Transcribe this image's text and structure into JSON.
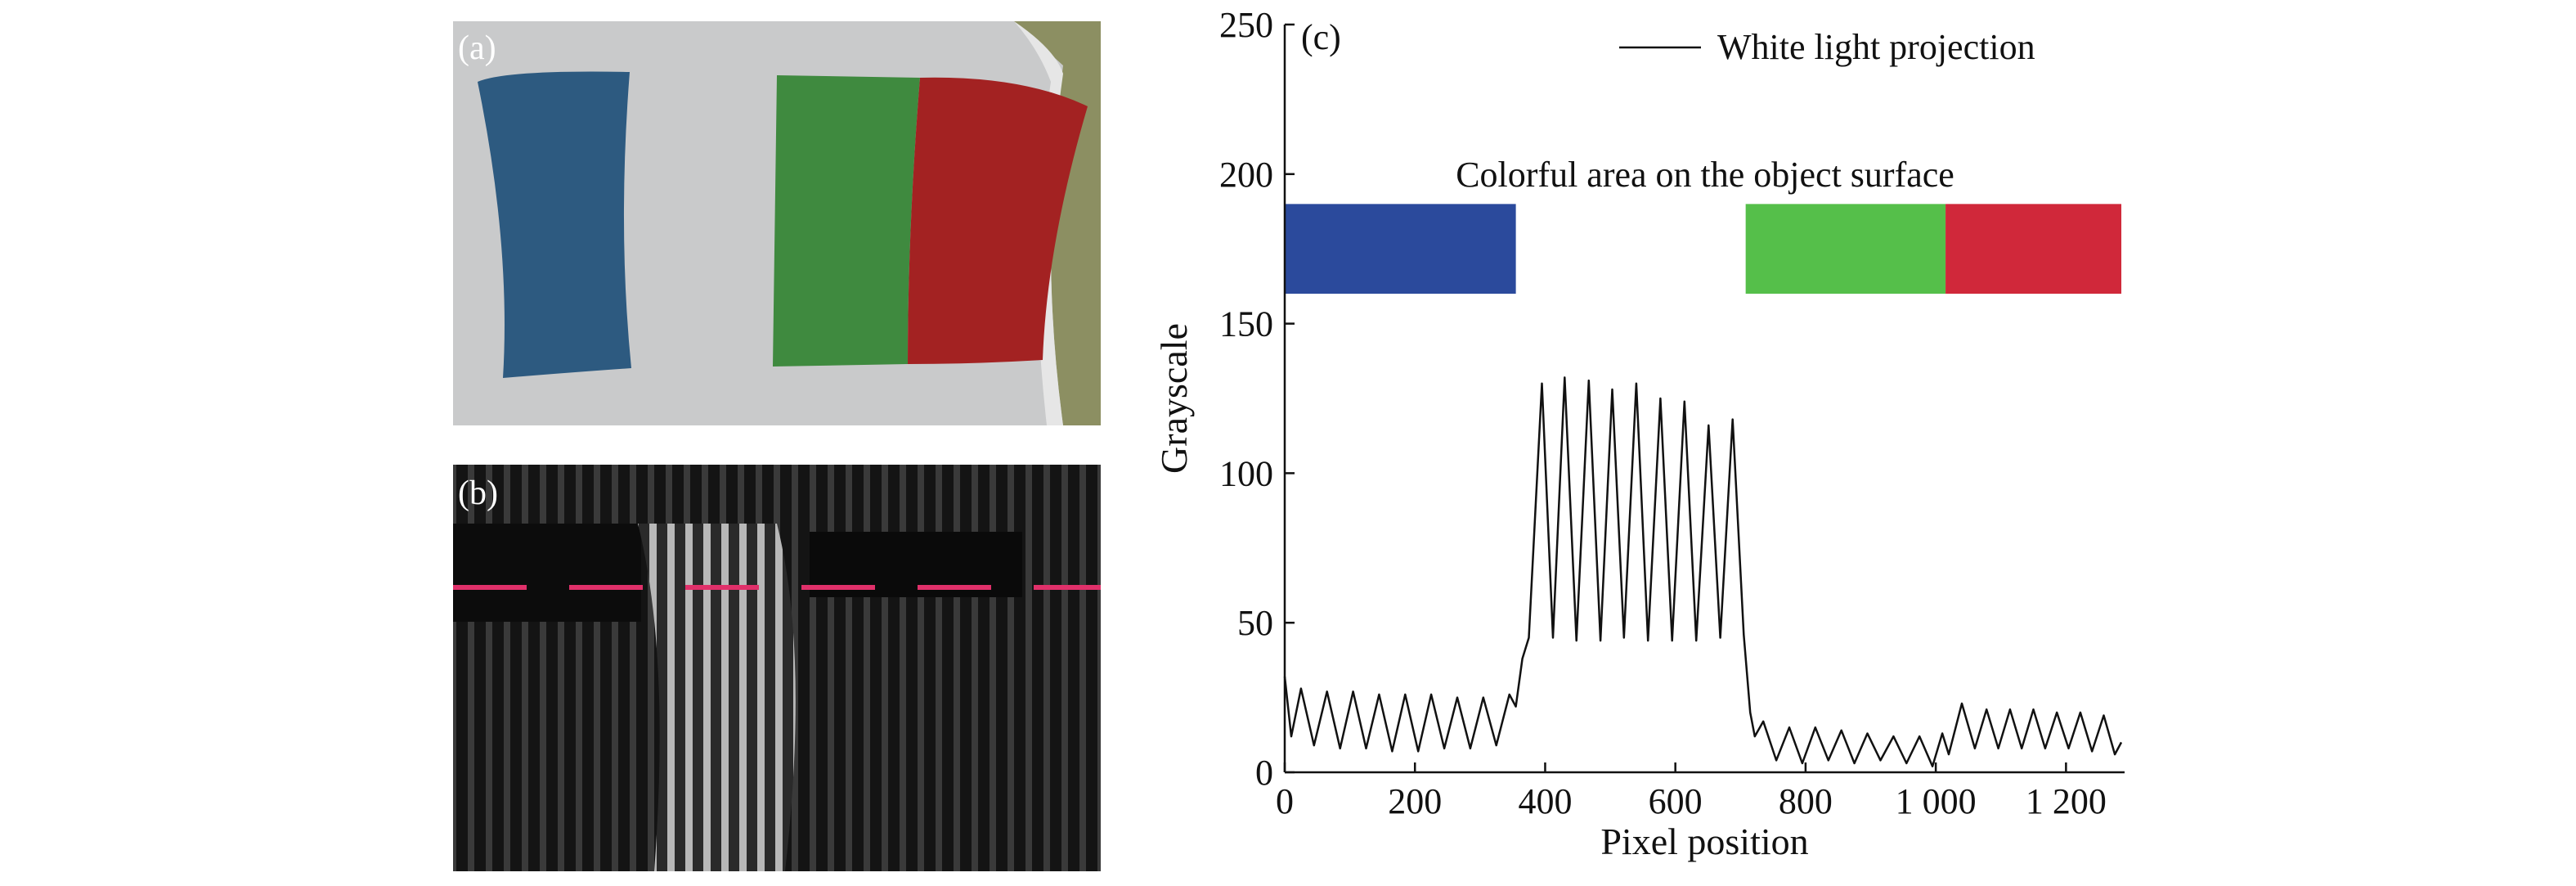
{
  "panels": {
    "a": "(a)",
    "b": "(b)"
  },
  "chart_data": {
    "type": "line",
    "panel_label": "(c)",
    "xlabel": "Pixel position",
    "ylabel": "Grayscale",
    "annotation": "Colorful area on the object surface",
    "legend": "upper right",
    "xlim": [
      0,
      1290
    ],
    "ylim": [
      0,
      250
    ],
    "xticks": [
      0,
      200,
      400,
      600,
      800,
      {
        "value": 1000,
        "label": "1 000"
      },
      {
        "value": 1200,
        "label": "1 200"
      }
    ],
    "yticks": [
      0,
      50,
      100,
      150,
      200,
      250
    ],
    "color_bars": [
      {
        "color": "#2b4a9c",
        "x": [
          0,
          355
        ],
        "y": [
          160,
          190
        ]
      },
      {
        "color": "#55bf4a",
        "x": [
          708,
          1015
        ],
        "y": [
          160,
          190
        ]
      },
      {
        "color": "#d0283a",
        "x": [
          1015,
          1285
        ],
        "y": [
          160,
          190
        ]
      }
    ],
    "x": [
      0,
      10,
      25,
      45,
      65,
      85,
      105,
      125,
      145,
      165,
      185,
      205,
      225,
      245,
      265,
      285,
      305,
      325,
      345,
      355,
      365,
      375,
      395,
      412,
      430,
      448,
      467,
      485,
      503,
      521,
      540,
      558,
      577,
      595,
      614,
      632,
      651,
      669,
      688,
      705,
      715,
      722,
      735,
      755,
      775,
      795,
      815,
      835,
      855,
      875,
      895,
      915,
      935,
      955,
      975,
      995,
      1010,
      1020,
      1040,
      1060,
      1078,
      1096,
      1114,
      1132,
      1150,
      1168,
      1186,
      1204,
      1222,
      1240,
      1258,
      1275,
      1285
    ],
    "series": [
      {
        "name": "White light projection",
        "color": "#111111",
        "values": [
          32,
          12,
          28,
          9,
          27,
          8,
          27,
          8,
          26,
          7,
          26,
          7,
          26,
          8,
          25,
          8,
          25,
          9,
          26,
          22,
          38,
          45,
          130,
          45,
          132,
          44,
          131,
          44,
          128,
          45,
          130,
          44,
          125,
          44,
          124,
          44,
          116,
          45,
          118,
          46,
          20,
          12,
          17,
          4,
          15,
          3,
          15,
          4,
          14,
          3,
          13,
          4,
          12,
          3,
          12,
          2,
          13,
          6,
          23,
          8,
          21,
          8,
          21,
          8,
          21,
          8,
          20,
          8,
          20,
          7,
          19,
          6,
          10
        ]
      }
    ]
  }
}
